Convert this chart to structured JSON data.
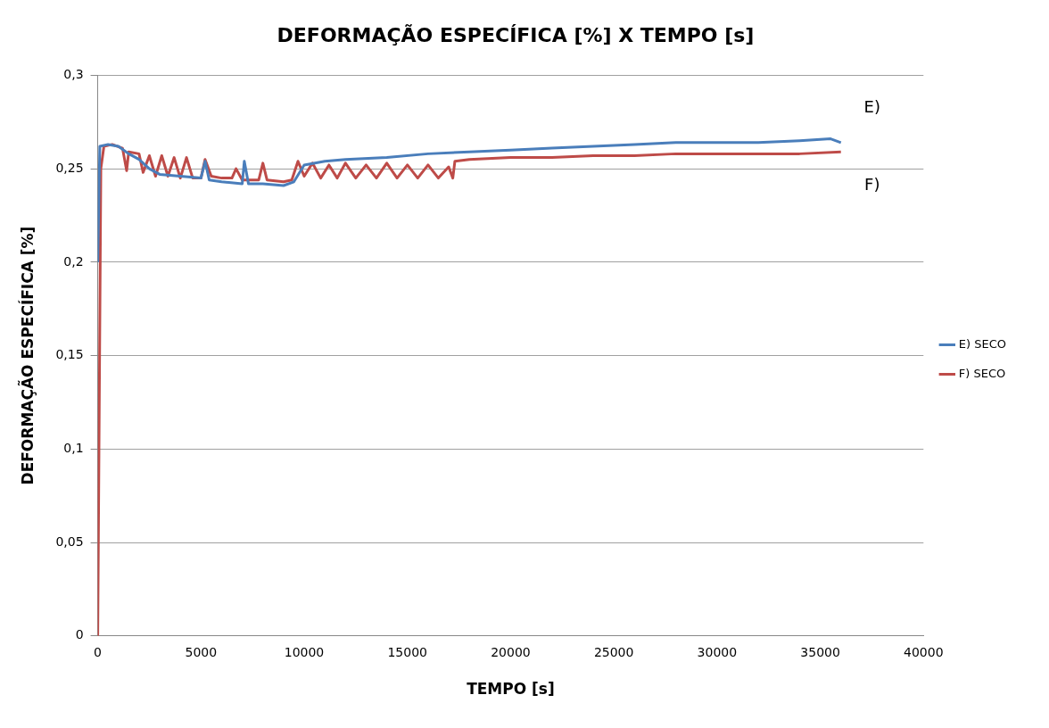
{
  "chart_data": {
    "type": "line",
    "title": "DEFORMAÇÃO ESPECÍFICA [%] X TEMPO [s]",
    "xlabel": "TEMPO [s]",
    "ylabel": "DEFORMAÇÃO ESPECÍFICA [%]",
    "xlim": [
      0,
      40000
    ],
    "xticks": [
      0,
      5000,
      10000,
      15000,
      20000,
      25000,
      30000,
      35000,
      40000
    ],
    "ylim": [
      0,
      0.3
    ],
    "yticks": [
      0,
      {
        "value": 0.05,
        "label": "0,05"
      },
      {
        "value": 0.1,
        "label": "0,1"
      },
      {
        "value": 0.15,
        "label": "0,15"
      },
      {
        "value": 0.2,
        "label": "0,2"
      },
      {
        "value": 0.25,
        "label": "0,25"
      },
      {
        "value": 0.3,
        "label": "0,3"
      }
    ],
    "grid": "y",
    "legend": "right",
    "marker": "none",
    "line_style": "solid",
    "annotations": [
      "E)",
      "F)"
    ],
    "series": [
      {
        "name": "E) SECO",
        "color": "#4a7ebb",
        "x": [
          0,
          100,
          500,
          1000,
          1500,
          2000,
          2500,
          3000,
          4000,
          5000,
          5200,
          5400,
          6000,
          7000,
          7100,
          7300,
          8000,
          9000,
          9500,
          10000,
          11000,
          12000,
          14000,
          16000,
          18000,
          20000,
          22000,
          24000,
          26000,
          28000,
          30000,
          32000,
          34000,
          35500,
          36000
        ],
        "values": [
          0.2,
          0.262,
          0.263,
          0.262,
          0.258,
          0.255,
          0.25,
          0.247,
          0.246,
          0.245,
          0.254,
          0.244,
          0.243,
          0.242,
          0.254,
          0.242,
          0.242,
          0.241,
          0.243,
          0.252,
          0.254,
          0.255,
          0.256,
          0.258,
          0.259,
          0.26,
          0.261,
          0.262,
          0.263,
          0.264,
          0.264,
          0.264,
          0.265,
          0.266,
          0.264
        ]
      },
      {
        "name": "F) SECO",
        "color": "#be4b48",
        "x": [
          0,
          150,
          300,
          700,
          1200,
          1400,
          1500,
          2000,
          2200,
          2500,
          2800,
          3100,
          3400,
          3700,
          4000,
          4300,
          4600,
          5000,
          5200,
          5500,
          6000,
          6500,
          6700,
          7000,
          7800,
          8000,
          8200,
          9000,
          9400,
          9700,
          10000,
          10400,
          10800,
          11200,
          11600,
          12000,
          12500,
          13000,
          13500,
          14000,
          14500,
          15000,
          15500,
          16000,
          16500,
          17000,
          17200,
          17300,
          18000,
          20000,
          22000,
          24000,
          26000,
          28000,
          30000,
          32000,
          34000,
          36000
        ],
        "values": [
          0,
          0.25,
          0.262,
          0.263,
          0.261,
          0.249,
          0.259,
          0.258,
          0.248,
          0.257,
          0.246,
          0.257,
          0.246,
          0.256,
          0.245,
          0.256,
          0.245,
          0.245,
          0.255,
          0.246,
          0.245,
          0.245,
          0.25,
          0.244,
          0.244,
          0.253,
          0.244,
          0.243,
          0.244,
          0.254,
          0.246,
          0.253,
          0.245,
          0.252,
          0.245,
          0.253,
          0.245,
          0.252,
          0.245,
          0.253,
          0.245,
          0.252,
          0.245,
          0.252,
          0.245,
          0.251,
          0.245,
          0.254,
          0.255,
          0.256,
          0.256,
          0.257,
          0.257,
          0.258,
          0.258,
          0.258,
          0.258,
          0.259
        ]
      }
    ]
  }
}
